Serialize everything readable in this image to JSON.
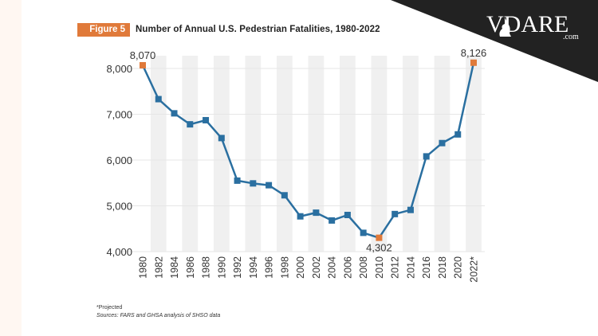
{
  "header": {
    "badge": "Figure 5",
    "title": "Number of Annual U.S. Pedestrian Fatalities, 1980-2022"
  },
  "watermark": {
    "logo_text": "VDARE",
    "logo_suffix": ".com",
    "icon": "cat-silhouette-icon"
  },
  "footer": {
    "note": "*Projected",
    "source": "Sources: FARS and GHSA analysis of SHSO data"
  },
  "colors": {
    "line": "#2a6fa0",
    "highlight": "#e07a3a",
    "band": "#f0f0f0",
    "grid": "#e6e6e6"
  },
  "chart_data": {
    "type": "line",
    "title": "Number of Annual U.S. Pedestrian Fatalities, 1980-2022",
    "xlabel": "",
    "ylabel": "",
    "categories": [
      "1980",
      "1982",
      "1984",
      "1986",
      "1988",
      "1990",
      "1992",
      "1994",
      "1996",
      "1998",
      "2000",
      "2002",
      "2004",
      "2006",
      "2008",
      "2010",
      "2012",
      "2014",
      "2016",
      "2018",
      "2020",
      "2022*"
    ],
    "series": [
      {
        "name": "Pedestrian Fatalities",
        "values": [
          8070,
          7330,
          7020,
          6780,
          6870,
          6480,
          5550,
          5490,
          5450,
          5230,
          4770,
          4850,
          4680,
          4800,
          4410,
          4302,
          4820,
          4910,
          6080,
          6370,
          6560,
          8126
        ]
      }
    ],
    "highlighted": [
      {
        "category": "1980",
        "label": "8,070"
      },
      {
        "category": "2010",
        "label": "4,302"
      },
      {
        "category": "2022*",
        "label": "8,126"
      }
    ],
    "yticks": [
      4000,
      5000,
      6000,
      7000,
      8000
    ],
    "ytick_labels": [
      "4,000",
      "5,000",
      "6,000",
      "7,000",
      "8,000"
    ],
    "ylim": [
      4000,
      8000
    ],
    "grid": true,
    "shaded_bands": [
      "1982",
      "1986",
      "1990",
      "1994",
      "1998",
      "2002",
      "2006",
      "2010",
      "2014",
      "2018",
      "2022*"
    ],
    "legend": "none"
  }
}
